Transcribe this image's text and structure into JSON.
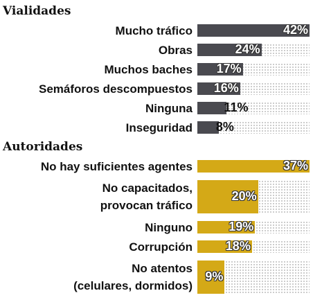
{
  "chart_data": [
    {
      "type": "bar",
      "title": "Vialidades",
      "color": "#4a4a50",
      "xlim": [
        0,
        42
      ],
      "categories": [
        "Mucho tráfico",
        "Obras",
        "Muchos baches",
        "Semáforos descompuestos",
        "Ninguna",
        "Inseguridad"
      ],
      "values": [
        42,
        24,
        17,
        16,
        11,
        8
      ],
      "value_labels": [
        "42%",
        "24%",
        "17%",
        "16%",
        "11%",
        "8%"
      ]
    },
    {
      "type": "bar",
      "title": "Autoridades",
      "color": "#d4a917",
      "xlim": [
        0,
        37
      ],
      "categories": [
        "No hay suficientes agentes",
        "No capacitados,\nprovocan tráfico",
        "Ninguno",
        "Corrupción",
        "No atentos\n(celulares, dormidos)"
      ],
      "values": [
        37,
        20,
        19,
        18,
        9
      ],
      "value_labels": [
        "37%",
        "20%",
        "19%",
        "18%",
        "9%"
      ]
    }
  ]
}
